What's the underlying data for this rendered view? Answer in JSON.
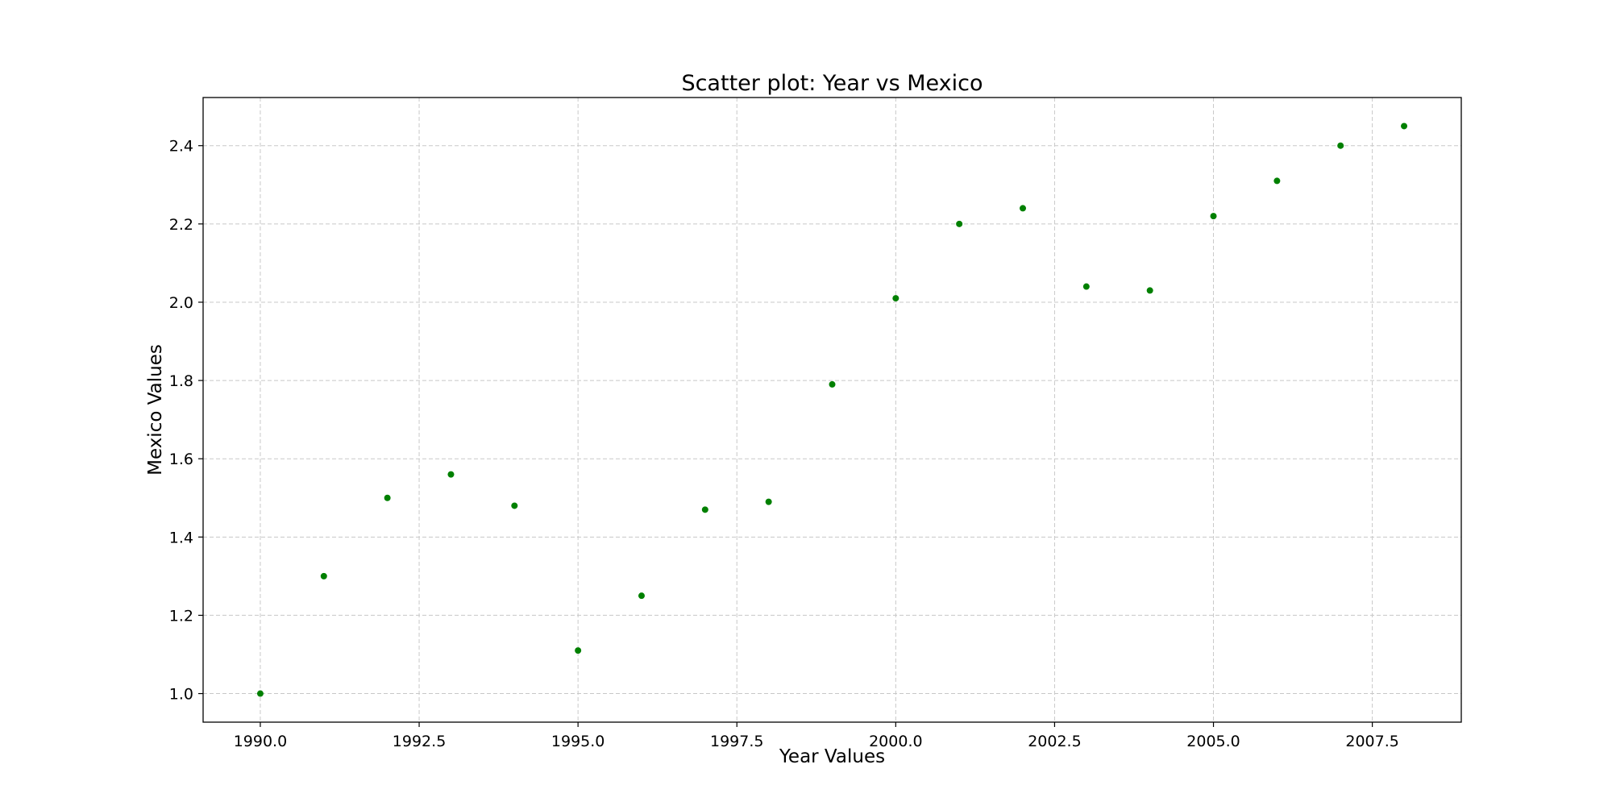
{
  "chart_data": {
    "type": "scatter",
    "title": "Scatter plot: Year vs Mexico",
    "xlabel": "Year Values",
    "ylabel": "Mexico Values",
    "xlim": [
      1989.1,
      2008.9
    ],
    "ylim": [
      0.927,
      2.523
    ],
    "xticks": [
      1990.0,
      1992.5,
      1995.0,
      1997.5,
      2000.0,
      2002.5,
      2005.0,
      2007.5
    ],
    "xtick_labels": [
      "1990.0",
      "1992.5",
      "1995.0",
      "1997.5",
      "2000.0",
      "2002.5",
      "2005.0",
      "2007.5"
    ],
    "yticks": [
      1.0,
      1.2,
      1.4,
      1.6,
      1.8,
      2.0,
      2.2,
      2.4
    ],
    "ytick_labels": [
      "1.0",
      "1.2",
      "1.4",
      "1.6",
      "1.8",
      "2.0",
      "2.2",
      "2.4"
    ],
    "grid": true,
    "grid_style": "dashed",
    "colors": {
      "points": "#008000",
      "grid": "#c8c8c8",
      "axes": "#000000"
    },
    "series": [
      {
        "x": [
          1990,
          1991,
          1992,
          1993,
          1994,
          1995,
          1996,
          1997,
          1998,
          1999,
          2000,
          2001,
          2002,
          2003,
          2004,
          2005,
          2006,
          2007,
          2008
        ],
        "y": [
          1.0,
          1.3,
          1.5,
          1.56,
          1.48,
          1.11,
          1.25,
          1.47,
          1.49,
          1.79,
          2.01,
          2.2,
          2.24,
          2.04,
          2.03,
          2.22,
          2.31,
          2.4,
          2.45
        ]
      }
    ]
  }
}
